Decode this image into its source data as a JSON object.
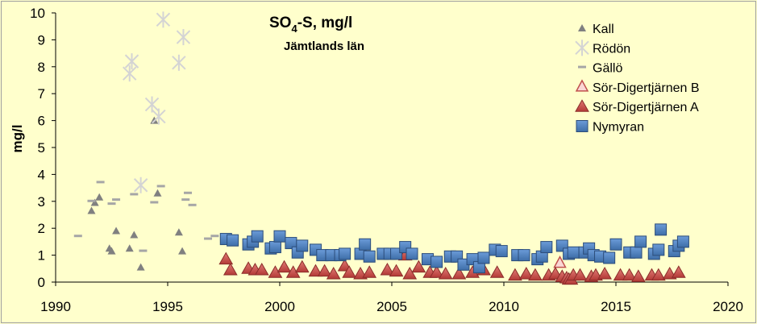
{
  "chart_data": {
    "type": "scatter",
    "title": "SO",
    "title_sub": "4",
    "title_rest": "-S, mg/l",
    "subtitle": "Jämtlands län",
    "ylabel": "mg/l",
    "xlim": [
      1990,
      2020
    ],
    "ylim": [
      0,
      10
    ],
    "x_ticks": [
      "1990",
      "1995",
      "2000",
      "2005",
      "2010",
      "2015",
      "2020"
    ],
    "y_ticks": [
      "0",
      "1",
      "2",
      "3",
      "4",
      "5",
      "6",
      "7",
      "8",
      "9",
      "10"
    ],
    "grid": "none",
    "legend_position": "top-right",
    "series": [
      {
        "name": "Kall",
        "marker": "triangle-small",
        "color": "#808080",
        "points": [
          [
            1991.6,
            2.65
          ],
          [
            1991.75,
            2.95
          ],
          [
            1991.95,
            3.15
          ],
          [
            1992.4,
            1.25
          ],
          [
            1992.5,
            1.15
          ],
          [
            1992.7,
            1.9
          ],
          [
            1993.3,
            1.25
          ],
          [
            1993.5,
            1.75
          ],
          [
            1993.8,
            0.55
          ],
          [
            1994.4,
            6.0
          ],
          [
            1994.55,
            3.3
          ],
          [
            1995.5,
            1.85
          ],
          [
            1995.65,
            1.15
          ]
        ]
      },
      {
        "name": "Rödön",
        "marker": "star",
        "color": "#d4d4d4",
        "points": [
          [
            1993.3,
            7.75
          ],
          [
            1993.4,
            8.2
          ],
          [
            1993.8,
            3.6
          ],
          [
            1994.3,
            6.6
          ],
          [
            1994.6,
            6.15
          ],
          [
            1994.8,
            9.75
          ],
          [
            1995.5,
            8.15
          ],
          [
            1995.7,
            9.1
          ]
        ]
      },
      {
        "name": "Gällö",
        "marker": "dash",
        "color": "#a6a6a6",
        "points": [
          [
            1991.0,
            1.7
          ],
          [
            1991.6,
            3.0
          ],
          [
            1992.0,
            3.7
          ],
          [
            1992.5,
            2.9
          ],
          [
            1992.7,
            3.05
          ],
          [
            1993.5,
            3.25
          ],
          [
            1993.9,
            1.15
          ],
          [
            1994.4,
            2.95
          ],
          [
            1994.7,
            3.55
          ],
          [
            1995.8,
            3.05
          ],
          [
            1995.9,
            3.3
          ],
          [
            1996.1,
            2.85
          ],
          [
            1996.8,
            1.6
          ],
          [
            1997.1,
            1.7
          ]
        ]
      },
      {
        "name": "Sör-Digertjärnen B",
        "marker": "triangle-outline",
        "color": "#c0504d",
        "points": [
          [
            2012.5,
            0.7
          ]
        ]
      },
      {
        "name": "Sör-Digertjärnen A",
        "marker": "triangle",
        "color": "#c0504d",
        "points": [
          [
            1997.6,
            0.85
          ],
          [
            1997.8,
            0.45
          ],
          [
            1998.6,
            0.5
          ],
          [
            1998.9,
            0.45
          ],
          [
            1999.2,
            0.45
          ],
          [
            1999.8,
            0.35
          ],
          [
            2000.2,
            0.55
          ],
          [
            2000.6,
            0.35
          ],
          [
            2001.0,
            0.55
          ],
          [
            2001.6,
            0.4
          ],
          [
            2002.0,
            0.4
          ],
          [
            2002.4,
            0.3
          ],
          [
            2002.9,
            0.6
          ],
          [
            2003.1,
            0.35
          ],
          [
            2003.6,
            0.3
          ],
          [
            2004.0,
            0.35
          ],
          [
            2004.8,
            0.45
          ],
          [
            2005.2,
            0.4
          ],
          [
            2005.6,
            1.0
          ],
          [
            2005.8,
            0.3
          ],
          [
            2006.2,
            0.55
          ],
          [
            2006.7,
            0.35
          ],
          [
            2007.0,
            0.35
          ],
          [
            2007.4,
            0.3
          ],
          [
            2008.0,
            0.3
          ],
          [
            2008.6,
            0.35
          ],
          [
            2009.1,
            0.45
          ],
          [
            2009.7,
            0.35
          ],
          [
            2010.5,
            0.25
          ],
          [
            2011.0,
            0.3
          ],
          [
            2011.4,
            0.25
          ],
          [
            2012.0,
            0.25
          ],
          [
            2012.3,
            0.3
          ],
          [
            2012.6,
            0.2
          ],
          [
            2012.8,
            0.15
          ],
          [
            2012.9,
            0.1
          ],
          [
            2013.0,
            0.1
          ],
          [
            2013.1,
            0.25
          ],
          [
            2013.4,
            0.25
          ],
          [
            2013.9,
            0.2
          ],
          [
            2014.1,
            0.25
          ],
          [
            2014.5,
            0.3
          ],
          [
            2015.2,
            0.25
          ],
          [
            2015.6,
            0.25
          ],
          [
            2016.0,
            0.2
          ],
          [
            2016.6,
            0.25
          ],
          [
            2016.9,
            0.25
          ],
          [
            2017.4,
            0.3
          ],
          [
            2017.8,
            0.35
          ]
        ]
      },
      {
        "name": "Nymyran",
        "marker": "square",
        "color": "#4f81bd",
        "points": [
          [
            1997.6,
            1.6
          ],
          [
            1997.9,
            1.55
          ],
          [
            1998.6,
            1.4
          ],
          [
            1998.8,
            1.5
          ],
          [
            1999.0,
            1.7
          ],
          [
            1999.6,
            1.25
          ],
          [
            1999.8,
            1.3
          ],
          [
            2000.0,
            1.7
          ],
          [
            2000.5,
            1.45
          ],
          [
            2000.8,
            1.1
          ],
          [
            2001.0,
            1.35
          ],
          [
            2001.6,
            1.2
          ],
          [
            2001.9,
            1.0
          ],
          [
            2002.3,
            1.0
          ],
          [
            2002.7,
            1.0
          ],
          [
            2002.9,
            1.05
          ],
          [
            2003.6,
            1.05
          ],
          [
            2003.8,
            1.4
          ],
          [
            2004.0,
            0.95
          ],
          [
            2004.6,
            1.05
          ],
          [
            2004.9,
            1.05
          ],
          [
            2005.2,
            1.05
          ],
          [
            2005.6,
            1.3
          ],
          [
            2005.9,
            1.05
          ],
          [
            2006.6,
            0.85
          ],
          [
            2007.0,
            0.75
          ],
          [
            2007.6,
            0.95
          ],
          [
            2007.9,
            0.95
          ],
          [
            2008.2,
            0.65
          ],
          [
            2008.6,
            0.85
          ],
          [
            2008.9,
            0.55
          ],
          [
            2009.1,
            0.9
          ],
          [
            2009.6,
            1.2
          ],
          [
            2009.9,
            1.15
          ],
          [
            2010.6,
            1.0
          ],
          [
            2010.9,
            1.0
          ],
          [
            2011.5,
            0.85
          ],
          [
            2011.7,
            0.95
          ],
          [
            2011.9,
            1.3
          ],
          [
            2012.6,
            1.35
          ],
          [
            2012.9,
            1.05
          ],
          [
            2013.1,
            1.1
          ],
          [
            2013.6,
            1.1
          ],
          [
            2013.8,
            1.25
          ],
          [
            2014.0,
            1.0
          ],
          [
            2014.3,
            0.95
          ],
          [
            2014.7,
            0.9
          ],
          [
            2015.0,
            1.4
          ],
          [
            2015.6,
            1.1
          ],
          [
            2015.9,
            1.1
          ],
          [
            2016.1,
            1.5
          ],
          [
            2016.7,
            1.05
          ],
          [
            2016.9,
            1.2
          ],
          [
            2017.0,
            1.95
          ],
          [
            2017.6,
            1.15
          ],
          [
            2017.8,
            1.35
          ],
          [
            2018.0,
            1.5
          ]
        ]
      }
    ]
  }
}
